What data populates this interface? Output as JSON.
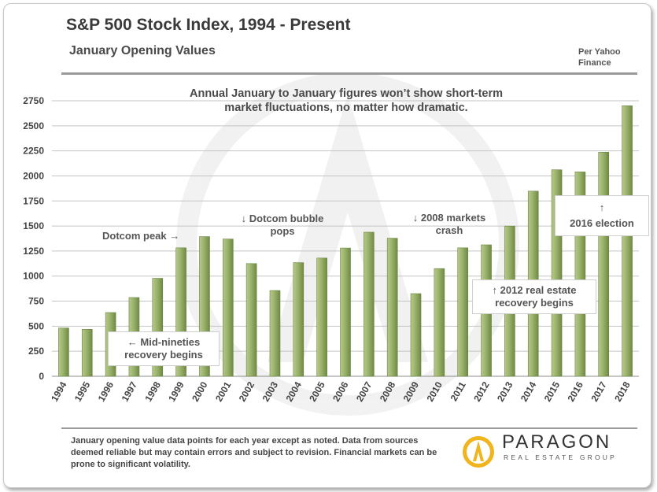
{
  "header": {
    "title": "S&P 500 Stock Index, 1994 - Present",
    "subtitle": "January Opening Values",
    "source": "Per Yahoo Finance"
  },
  "colors": {
    "bar": "#8aa35c",
    "bar_light": "#c3d39a",
    "bar_dark": "#5f7a3a"
  },
  "chart_data": {
    "type": "bar",
    "title": "S&P 500 Stock Index, 1994 - Present",
    "subtitle": "January Opening Values",
    "xlabel": "",
    "ylabel": "",
    "ylim": [
      0,
      2750
    ],
    "yticks": [
      0,
      250,
      500,
      750,
      1000,
      1250,
      1500,
      1750,
      2000,
      2250,
      2500,
      2750
    ],
    "grid": true,
    "categories": [
      "1994",
      "1995",
      "1996",
      "1997",
      "1998",
      "1999",
      "2000",
      "2001",
      "2002",
      "2003",
      "2004",
      "2005",
      "2006",
      "2007",
      "2008",
      "2009",
      "2010",
      "2011",
      "2012",
      "2013",
      "2014",
      "2015",
      "2016",
      "2017",
      "2018"
    ],
    "values": [
      482,
      469,
      636,
      786,
      978,
      1282,
      1394,
      1370,
      1125,
      856,
      1134,
      1180,
      1280,
      1438,
      1378,
      825,
      1075,
      1282,
      1312,
      1499,
      1848,
      2061,
      2040,
      2237,
      2700
    ],
    "annotations": {
      "top_note": "Annual January to January figures won’t show short-term market fluctuations, no matter how dramatic.",
      "mid_nineties": "← Mid-nineties recovery begins",
      "dotcom_peak": "Dotcom peak →",
      "dotcom_pops": "↓ Dotcom bubble pops",
      "crash_2008": "↓ 2008 markets crash",
      "real_estate_2012": "↑ 2012 real estate recovery  begins",
      "election_2016_arrow": "↑",
      "election_2016": "2016 election"
    }
  },
  "footer": {
    "disclaimer": "January opening value data points for each year except as noted. Data from sources deemed reliable but may contain errors and subject to revision. Financial markets can be prone to significant volatility.",
    "logo_name": "PARAGON",
    "logo_sub": "REAL ESTATE GROUP"
  }
}
